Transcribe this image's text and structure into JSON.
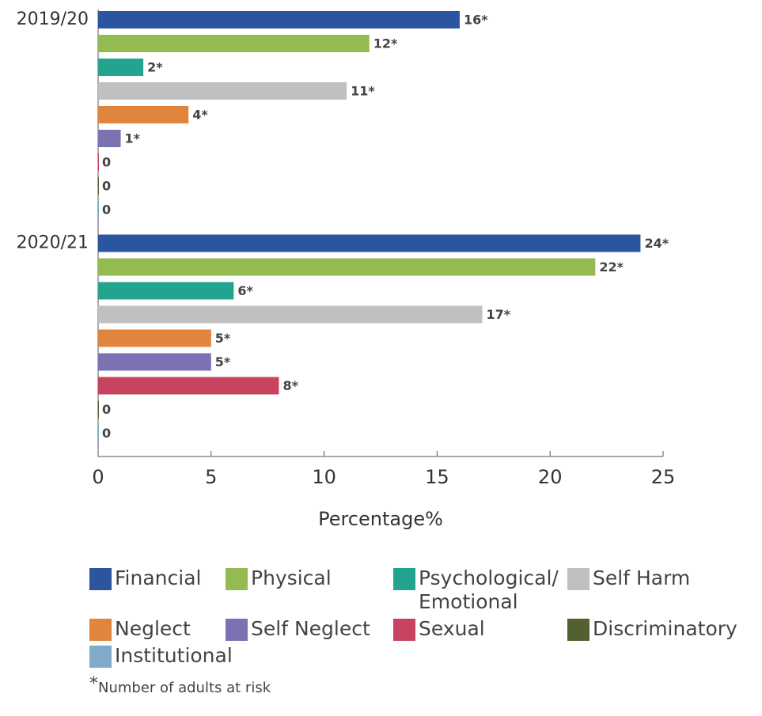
{
  "chart_data": {
    "type": "bar",
    "orientation": "horizontal",
    "categories": [
      "2019/20",
      "2020/21"
    ],
    "series": [
      {
        "name": "Financial",
        "color": "#2b559f",
        "values": [
          16,
          24
        ],
        "value_labels": [
          "16*",
          "24*"
        ]
      },
      {
        "name": "Physical",
        "color": "#93bb52",
        "values": [
          12,
          22
        ],
        "value_labels": [
          "12*",
          "22*"
        ]
      },
      {
        "name": "Psychological/ Emotional",
        "color": "#23a48f",
        "values": [
          2,
          6
        ],
        "value_labels": [
          "2*",
          "6*"
        ]
      },
      {
        "name": "Self Harm",
        "color": "#c0c0c0",
        "values": [
          11,
          17
        ],
        "value_labels": [
          "11*",
          "17*"
        ]
      },
      {
        "name": "Neglect",
        "color": "#e0843e",
        "values": [
          4,
          5
        ],
        "value_labels": [
          "4*",
          "5*"
        ]
      },
      {
        "name": "Self Neglect",
        "color": "#7b72b4",
        "values": [
          1,
          5
        ],
        "value_labels": [
          "1*",
          "5*"
        ]
      },
      {
        "name": "Sexual",
        "color": "#c7435f",
        "values": [
          0,
          8
        ],
        "value_labels": [
          "0",
          "8*"
        ]
      },
      {
        "name": "Discriminatory",
        "color": "#536130",
        "values": [
          0,
          0
        ],
        "value_labels": [
          "0",
          "0"
        ]
      },
      {
        "name": "Institutional",
        "color": "#7fabc8",
        "values": [
          0,
          0
        ],
        "value_labels": [
          "0",
          "0"
        ]
      }
    ],
    "xlabel": "Percentage%",
    "xlim": [
      0,
      25
    ],
    "xticks": [
      0,
      5,
      10,
      15,
      20,
      25
    ],
    "footnote_marker": "*",
    "footnote": "Number of adults at risk"
  }
}
